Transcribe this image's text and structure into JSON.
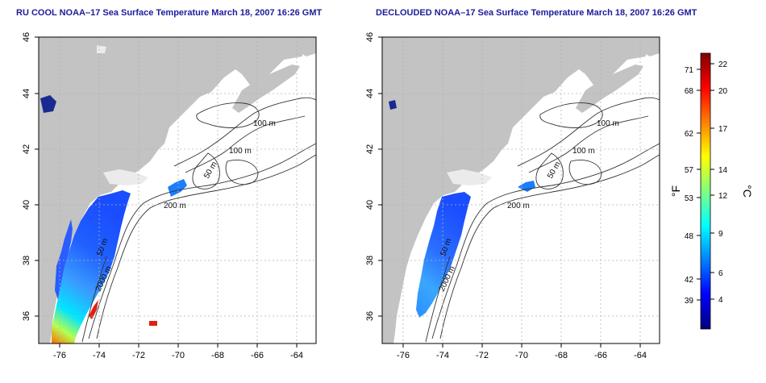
{
  "left_panel": {
    "title": "RU COOL NOAA–17 Sea Surface Temperature March 18, 2007 16:26 GMT",
    "x_ticks": [
      "-76",
      "-74",
      "-72",
      "-70",
      "-68",
      "-66",
      "-64"
    ],
    "y_ticks": [
      "46",
      "44",
      "42",
      "40",
      "38",
      "36"
    ],
    "contour_labels": [
      "100 m",
      "100 m",
      "50 m",
      "200 m",
      "50 m",
      "2000 m"
    ]
  },
  "right_panel": {
    "title": "DECLOUDED NOAA–17 Sea Surface Temperature March 18, 2007 16:26 GMT",
    "x_ticks": [
      "-76",
      "-74",
      "-72",
      "-70",
      "-68",
      "-66",
      "-64"
    ],
    "y_ticks": [
      "46",
      "44",
      "42",
      "40",
      "38",
      "36"
    ],
    "contour_labels": [
      "100 m",
      "100 m",
      "50 m",
      "200 m",
      "50 m",
      "2000 m"
    ]
  },
  "colorbar": {
    "fahrenheit_unit": "°F",
    "celsius_unit": "°C",
    "fahrenheit_ticks": [
      "71",
      "68",
      "62",
      "57",
      "53",
      "48",
      "42",
      "39"
    ],
    "celsius_ticks": [
      "22",
      "20",
      "17",
      "14",
      "12",
      "9",
      "6",
      "4"
    ],
    "colors": [
      "#00007f",
      "#0000ff",
      "#0080ff",
      "#00ffff",
      "#80ff80",
      "#ffff00",
      "#ff8000",
      "#ff0000",
      "#7f0000"
    ]
  },
  "colors": {
    "land": "#c3c3c3",
    "ocean": "#ffffff",
    "grid": "#b4b4b4",
    "contour": "#333333",
    "title": "#1c1c9c"
  }
}
